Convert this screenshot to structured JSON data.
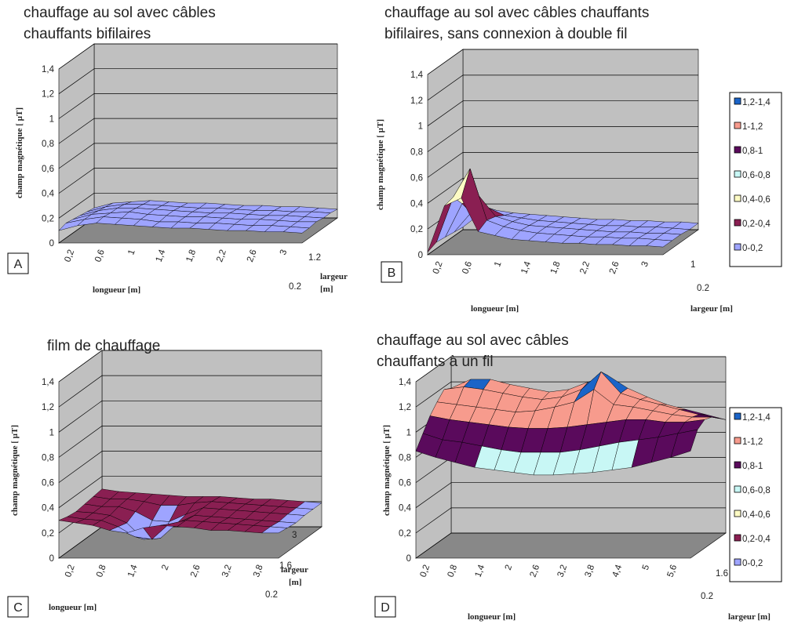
{
  "chart_data": [
    {
      "id": "A",
      "type": "surface3d",
      "panel_letter": "A",
      "title_lines": [
        "chauffage au sol avec câbles",
        "chauffants bifilaires"
      ],
      "zlabel": "champ magnétique [ µT]",
      "xlabel": "longueur [m]",
      "ylabel_lines": [
        "largeur",
        "[m]"
      ],
      "z_ticks": [
        "0",
        "0,2",
        "0,4",
        "0,6",
        "0,8",
        "1",
        "1,2",
        "1,4"
      ],
      "zlim": [
        0,
        1.4
      ],
      "x_ticks": [
        "0,2",
        "0,6",
        "1",
        "1,4",
        "1,8",
        "2,2",
        "2,6",
        "3"
      ],
      "y_ticks": [
        "0.2",
        "1.2"
      ],
      "legend": false,
      "surface": {
        "x_range": [
          0.2,
          3.2
        ],
        "y_range": [
          0.2,
          1.2
        ],
        "z": [
          [
            0.1,
            0.14,
            0.16,
            0.15,
            0.14,
            0.13,
            0.12,
            0.12,
            0.11,
            0.1,
            0.1,
            0.09,
            0.09,
            0.08
          ],
          [
            0.12,
            0.15,
            0.17,
            0.16,
            0.15,
            0.13,
            0.13,
            0.12,
            0.12,
            0.11,
            0.1,
            0.1,
            0.09,
            0.08
          ],
          [
            0.11,
            0.15,
            0.16,
            0.17,
            0.15,
            0.14,
            0.13,
            0.13,
            0.12,
            0.11,
            0.11,
            0.1,
            0.09,
            0.09
          ],
          [
            0.1,
            0.14,
            0.16,
            0.16,
            0.15,
            0.14,
            0.13,
            0.12,
            0.12,
            0.11,
            0.1,
            0.1,
            0.09,
            0.08
          ],
          [
            0.09,
            0.13,
            0.15,
            0.15,
            0.14,
            0.13,
            0.12,
            0.12,
            0.11,
            0.1,
            0.1,
            0.09,
            0.09,
            0.08
          ],
          [
            0.08,
            0.12,
            0.13,
            0.14,
            0.13,
            0.12,
            0.12,
            0.11,
            0.1,
            0.1,
            0.09,
            0.09,
            0.08,
            0.07
          ]
        ]
      }
    },
    {
      "id": "B",
      "type": "surface3d",
      "panel_letter": "B",
      "title_lines": [
        "chauffage au sol avec câbles chauffants",
        "bifilaires, sans connexion à double fil"
      ],
      "zlabel": "champ magnétique [ µT]",
      "xlabel": "longueur [m]",
      "ylabel_lines": [
        "largeur [m]"
      ],
      "z_ticks": [
        "0",
        "0,2",
        "0,4",
        "0,6",
        "0,8",
        "1",
        "1,2",
        "1,4"
      ],
      "zlim": [
        0,
        1.4
      ],
      "x_ticks": [
        "0,2",
        "0,6",
        "1",
        "1,4",
        "1,8",
        "2,2",
        "2,6",
        "3"
      ],
      "y_ticks": [
        "0.2",
        "1"
      ],
      "legend": true,
      "surface": {
        "x_range": [
          0.2,
          3.4
        ],
        "y_range": [
          0.2,
          1.0
        ],
        "z": [
          [
            0.02,
            0.38,
            0.44,
            0.18,
            0.15,
            0.12,
            0.11,
            0.1,
            0.09,
            0.09,
            0.08,
            0.08,
            0.07,
            0.07,
            0.06
          ],
          [
            0.05,
            0.4,
            0.62,
            0.22,
            0.17,
            0.14,
            0.12,
            0.11,
            0.1,
            0.09,
            0.09,
            0.08,
            0.08,
            0.07,
            0.06
          ],
          [
            0.04,
            0.3,
            0.36,
            0.2,
            0.16,
            0.13,
            0.12,
            0.11,
            0.1,
            0.09,
            0.08,
            0.08,
            0.07,
            0.07,
            0.06
          ],
          [
            0.03,
            0.18,
            0.22,
            0.16,
            0.14,
            0.12,
            0.11,
            0.1,
            0.09,
            0.08,
            0.08,
            0.07,
            0.07,
            0.06,
            0.05
          ],
          [
            0.02,
            0.12,
            0.15,
            0.13,
            0.12,
            0.11,
            0.1,
            0.09,
            0.08,
            0.08,
            0.07,
            0.07,
            0.06,
            0.06,
            0.05
          ]
        ]
      }
    },
    {
      "id": "C",
      "type": "surface3d",
      "panel_letter": "C",
      "title_lines": [
        "film de chauffage"
      ],
      "zlabel": "champ magnétique [ µT]",
      "xlabel": "longueur [m]",
      "ylabel_lines": [
        "largeur",
        "[m]"
      ],
      "z_ticks": [
        "0",
        "0,2",
        "0,4",
        "0,6",
        "0,8",
        "1",
        "1,2",
        "1,4"
      ],
      "zlim": [
        0,
        1.4
      ],
      "x_ticks": [
        "0,2",
        "0,8",
        "1,4",
        "2",
        "2,6",
        "3,2",
        "3,8"
      ],
      "y_ticks": [
        "0.2",
        "1.6",
        "3"
      ],
      "legend": false,
      "surface": {
        "x_range": [
          0.2,
          4.2
        ],
        "y_range": [
          0.2,
          3.0
        ],
        "z": [
          [
            0.3,
            0.28,
            0.26,
            0.22,
            0.2,
            0.24,
            0.26,
            0.25,
            0.24,
            0.22,
            0.22,
            0.21,
            0.2,
            0.2
          ],
          [
            0.28,
            0.26,
            0.25,
            0.2,
            0.12,
            0.1,
            0.22,
            0.25,
            0.24,
            0.23,
            0.22,
            0.21,
            0.2,
            0.19
          ],
          [
            0.27,
            0.26,
            0.24,
            0.18,
            0.05,
            0.06,
            0.18,
            0.24,
            0.23,
            0.22,
            0.21,
            0.2,
            0.19,
            0.18
          ],
          [
            0.28,
            0.26,
            0.26,
            0.22,
            0.15,
            0.14,
            0.2,
            0.25,
            0.24,
            0.23,
            0.22,
            0.21,
            0.2,
            0.19
          ],
          [
            0.29,
            0.27,
            0.27,
            0.25,
            0.22,
            0.22,
            0.24,
            0.25,
            0.24,
            0.23,
            0.22,
            0.21,
            0.2,
            0.19
          ],
          [
            0.3,
            0.28,
            0.27,
            0.26,
            0.25,
            0.24,
            0.24,
            0.24,
            0.23,
            0.22,
            0.22,
            0.21,
            0.2,
            0.19
          ]
        ]
      }
    },
    {
      "id": "D",
      "type": "surface3d",
      "panel_letter": "D",
      "title_lines": [
        "chauffage au sol avec câbles",
        "chauffants à un fil"
      ],
      "zlabel": "champ magnétique [ µT]",
      "xlabel": "longueur [m]",
      "ylabel_lines": [
        "largeur [m]"
      ],
      "z_ticks": [
        "0",
        "0,2",
        "0,4",
        "0,6",
        "0,8",
        "1",
        "1,2",
        "1,4"
      ],
      "zlim": [
        0,
        1.4
      ],
      "x_ticks": [
        "0,2",
        "0,8",
        "1,4",
        "2",
        "2,6",
        "3,2",
        "3,8",
        "4,4",
        "5",
        "5,6"
      ],
      "y_ticks": [
        "0.2",
        "1.6"
      ],
      "legend": true,
      "surface": {
        "x_range": [
          0.2,
          5.6
        ],
        "y_range": [
          0.2,
          1.6
        ],
        "z": [
          [
            0.85,
            0.8,
            0.76,
            0.72,
            0.7,
            0.68,
            0.66,
            0.66,
            0.67,
            0.68,
            0.7,
            0.72,
            0.76,
            0.8,
            0.85
          ],
          [
            0.95,
            0.9,
            0.88,
            0.85,
            0.82,
            0.8,
            0.8,
            0.8,
            0.82,
            0.85,
            0.88,
            0.9,
            0.92,
            0.95,
            0.98
          ],
          [
            1.05,
            1.02,
            1.0,
            0.98,
            0.96,
            0.95,
            0.95,
            0.96,
            0.98,
            1.0,
            1.02,
            1.02,
            1.0,
            1.0,
            1.02
          ],
          [
            1.12,
            1.1,
            1.08,
            1.06,
            1.04,
            1.05,
            1.08,
            1.12,
            1.22,
            1.1,
            1.08,
            1.05,
            1.02,
            1.0,
            1.0
          ],
          [
            1.18,
            1.2,
            1.18,
            1.15,
            1.12,
            1.1,
            1.12,
            1.18,
            1.32,
            1.15,
            1.1,
            1.06,
            1.02,
            0.98,
            0.95
          ],
          [
            1.15,
            1.22,
            1.22,
            1.18,
            1.15,
            1.12,
            1.14,
            1.2,
            1.25,
            1.15,
            1.08,
            1.02,
            0.98,
            0.94,
            0.9
          ]
        ]
      }
    }
  ],
  "legend_entries": [
    {
      "label": "1,2-1,4",
      "color": "#1b64c8"
    },
    {
      "label": "1-1,2",
      "color": "#f79b8d"
    },
    {
      "label": "0,8-1",
      "color": "#5a0a5c"
    },
    {
      "label": "0,6-0,8",
      "color": "#c8f7f5"
    },
    {
      "label": "0,4-0,6",
      "color": "#fdfbc4"
    },
    {
      "label": "0,2-0,4",
      "color": "#8a1f52"
    },
    {
      "label": "0-0,2",
      "color": "#9ea4ff"
    }
  ],
  "colors": {
    "wall": "#c0c0c0",
    "floor": "#888888",
    "gridline": "#000000",
    "mesh": "#000000"
  }
}
